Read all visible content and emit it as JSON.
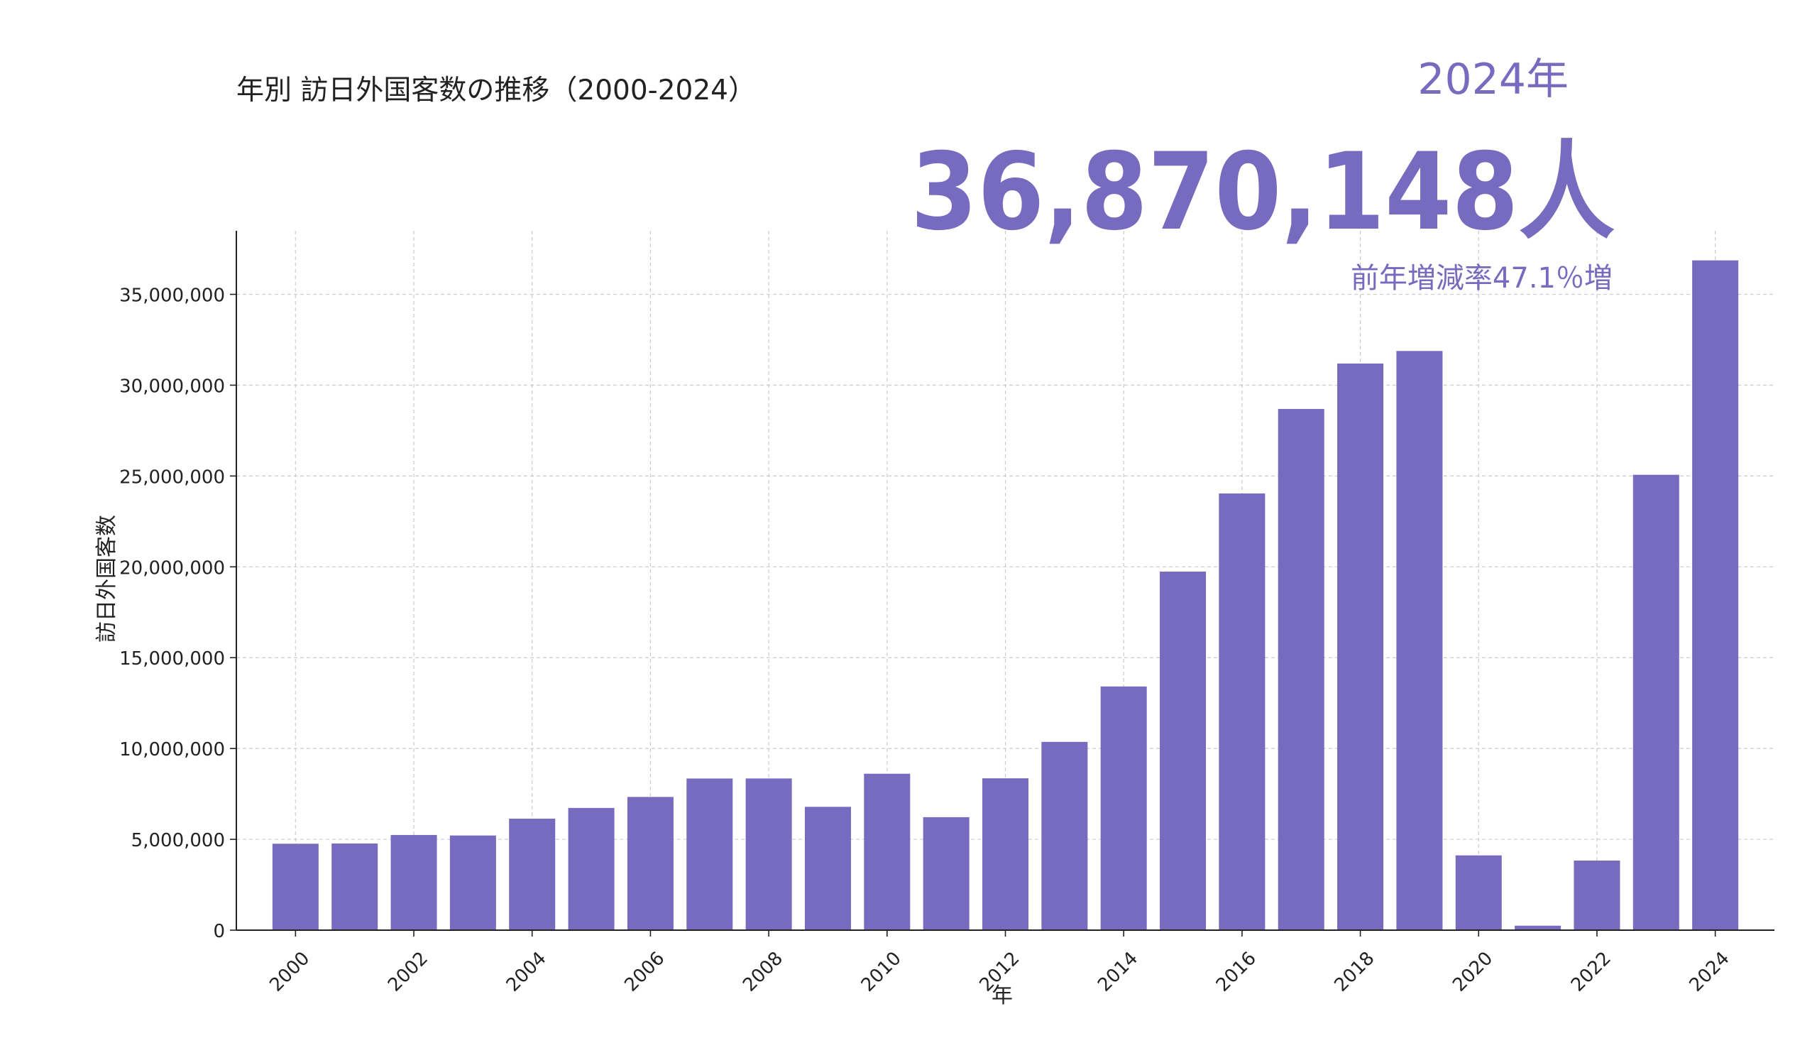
{
  "chart_data": {
    "type": "bar",
    "title": "年別 訪日外国客数の推移（2000-2024）",
    "xlabel": "年",
    "ylabel": "訪日外国客数",
    "categories": [
      2000,
      2001,
      2002,
      2003,
      2004,
      2005,
      2006,
      2007,
      2008,
      2009,
      2010,
      2011,
      2012,
      2013,
      2014,
      2015,
      2016,
      2017,
      2018,
      2019,
      2020,
      2021,
      2022,
      2023,
      2024
    ],
    "values": [
      4757146,
      4771555,
      5238963,
      5211725,
      6137905,
      6727926,
      7334077,
      8346969,
      8350835,
      6789658,
      8611175,
      6218752,
      8358105,
      10363904,
      13413467,
      19737409,
      24039700,
      28691073,
      31191856,
      31882049,
      4115828,
      245862,
      3832110,
      25066350,
      36870148
    ],
    "ylim": [
      0,
      38500000
    ],
    "y_ticks": [
      0,
      5000000,
      10000000,
      15000000,
      20000000,
      25000000,
      30000000,
      35000000
    ],
    "y_tick_labels": [
      "0",
      "5,000,000",
      "10,000,000",
      "15,000,000",
      "20,000,000",
      "25,000,000",
      "30,000,000",
      "35,000,000"
    ],
    "x_tick_labels": [
      "2000",
      "2002",
      "2004",
      "2006",
      "2008",
      "2010",
      "2012",
      "2014",
      "2016",
      "2018",
      "2020",
      "2022",
      "2024"
    ],
    "grid": true,
    "bar_color": "#776bbf",
    "annotation": {
      "year_label": "2024年",
      "big_number": "36,870,148人",
      "change_text": "前年増減率47.1％増",
      "color": "#776bbf"
    }
  }
}
